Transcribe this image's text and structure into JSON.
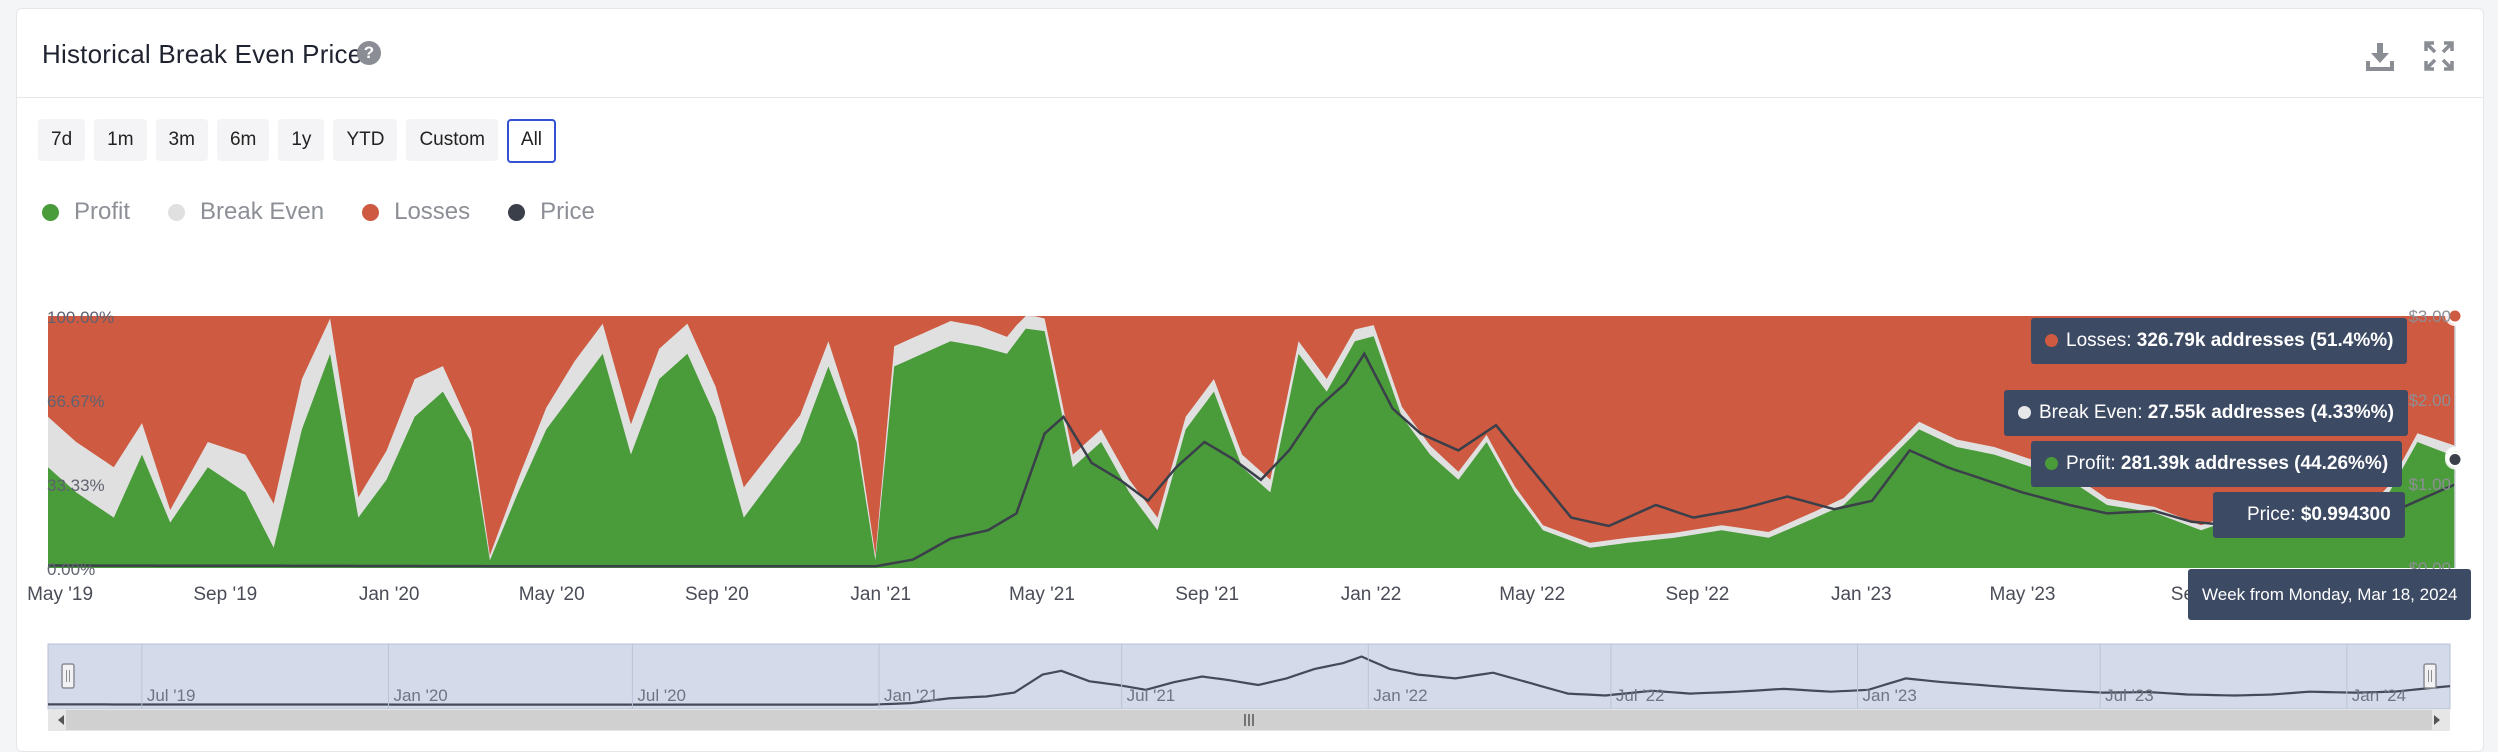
{
  "title": "Historical Break Even Price",
  "periods": [
    "7d",
    "1m",
    "3m",
    "6m",
    "1y",
    "YTD",
    "Custom",
    "All"
  ],
  "active_period": "All",
  "legend": [
    {
      "label": "Profit",
      "color": "#4a9b3a"
    },
    {
      "label": "Break Even",
      "color": "#e0e0e0"
    },
    {
      "label": "Losses",
      "color": "#cd5a41"
    },
    {
      "label": "Price",
      "color": "#3a3f4a"
    }
  ],
  "tooltip": {
    "losses": {
      "label": "Losses",
      "value": "326.79k addresses (51.4%%)"
    },
    "break_even": {
      "label": "Break Even",
      "value": "27.55k addresses (4.33%%)"
    },
    "profit": {
      "label": "Profit",
      "value": "281.39k addresses (44.26%%)"
    },
    "price": {
      "label": "Price",
      "value": "$0.994300"
    },
    "week": "Week from Monday, Mar 18, 2024"
  },
  "navigator_labels": [
    "Jul '19",
    "Jan '20",
    "Jul '20",
    "Jan '21",
    "Jul '21",
    "Jan '22",
    "Jul '22",
    "Jan '23",
    "Jul '23",
    "Jan '24"
  ],
  "chart_data": {
    "type": "area",
    "x_tick_labels": [
      "May '19",
      "Sep '19",
      "Jan '20",
      "May '20",
      "Sep '20",
      "Jan '21",
      "May '21",
      "Sep '21",
      "Jan '22",
      "May '22",
      "Sep '22",
      "Jan '23",
      "May '23",
      "Sep"
    ],
    "left_axis": {
      "ticks": [
        "0.00%",
        "33.33%",
        "66.67%",
        "100.00%"
      ],
      "ylim": [
        0,
        100
      ]
    },
    "right_axis": {
      "ticks": [
        "$0.00",
        "$1.00",
        "$2.00",
        "$3.00"
      ],
      "ylim": [
        0,
        3
      ]
    },
    "x_range": [
      "2019-04-22",
      "2024-03-18"
    ],
    "stacking": "percent",
    "series": [
      {
        "name": "Profit",
        "color": "#4a9b3a",
        "points": [
          [
            "2019-04-22",
            40
          ],
          [
            "2019-05-13",
            30
          ],
          [
            "2019-06-10",
            20
          ],
          [
            "2019-07-01",
            45
          ],
          [
            "2019-07-22",
            18
          ],
          [
            "2019-08-19",
            40
          ],
          [
            "2019-09-16",
            30
          ],
          [
            "2019-10-07",
            8
          ],
          [
            "2019-10-28",
            55
          ],
          [
            "2019-11-18",
            85
          ],
          [
            "2019-12-09",
            20
          ],
          [
            "2019-12-30",
            35
          ],
          [
            "2020-01-20",
            60
          ],
          [
            "2020-02-10",
            70
          ],
          [
            "2020-03-02",
            50
          ],
          [
            "2020-03-16",
            3
          ],
          [
            "2020-04-06",
            30
          ],
          [
            "2020-04-27",
            55
          ],
          [
            "2020-05-18",
            70
          ],
          [
            "2020-06-08",
            85
          ],
          [
            "2020-06-29",
            45
          ],
          [
            "2020-07-20",
            75
          ],
          [
            "2020-08-10",
            85
          ],
          [
            "2020-08-31",
            60
          ],
          [
            "2020-09-21",
            20
          ],
          [
            "2020-10-12",
            35
          ],
          [
            "2020-11-02",
            50
          ],
          [
            "2020-11-23",
            80
          ],
          [
            "2020-12-14",
            50
          ],
          [
            "2020-12-28",
            3
          ],
          [
            "2021-01-11",
            80
          ],
          [
            "2021-02-01",
            85
          ],
          [
            "2021-02-22",
            90
          ],
          [
            "2021-03-15",
            88
          ],
          [
            "2021-04-05",
            85
          ],
          [
            "2021-04-19",
            95
          ],
          [
            "2021-05-03",
            94
          ],
          [
            "2021-05-24",
            40
          ],
          [
            "2021-06-14",
            50
          ],
          [
            "2021-07-05",
            30
          ],
          [
            "2021-07-26",
            15
          ],
          [
            "2021-08-16",
            55
          ],
          [
            "2021-09-06",
            70
          ],
          [
            "2021-09-27",
            40
          ],
          [
            "2021-10-18",
            30
          ],
          [
            "2021-11-08",
            85
          ],
          [
            "2021-11-29",
            70
          ],
          [
            "2021-12-20",
            90
          ],
          [
            "2022-01-03",
            92
          ],
          [
            "2022-01-24",
            60
          ],
          [
            "2022-02-14",
            45
          ],
          [
            "2022-03-07",
            35
          ],
          [
            "2022-03-28",
            50
          ],
          [
            "2022-04-18",
            30
          ],
          [
            "2022-05-09",
            15
          ],
          [
            "2022-06-13",
            8
          ],
          [
            "2022-07-11",
            10
          ],
          [
            "2022-08-15",
            12
          ],
          [
            "2022-09-19",
            15
          ],
          [
            "2022-10-24",
            12
          ],
          [
            "2022-11-28",
            20
          ],
          [
            "2022-12-19",
            25
          ],
          [
            "2023-01-16",
            40
          ],
          [
            "2023-02-13",
            55
          ],
          [
            "2023-03-13",
            48
          ],
          [
            "2023-04-10",
            45
          ],
          [
            "2023-05-08",
            40
          ],
          [
            "2023-06-05",
            35
          ],
          [
            "2023-07-03",
            25
          ],
          [
            "2023-08-07",
            22
          ],
          [
            "2023-09-11",
            15
          ],
          [
            "2023-10-09",
            20
          ],
          [
            "2023-11-06",
            28
          ],
          [
            "2023-12-04",
            25
          ],
          [
            "2024-01-01",
            15
          ],
          [
            "2024-01-29",
            30
          ],
          [
            "2024-02-19",
            50
          ],
          [
            "2024-03-18",
            44.26
          ]
        ]
      },
      {
        "name": "Break Even",
        "color": "#e0e0e0",
        "points": [
          [
            "2019-04-22",
            20
          ],
          [
            "2019-06-10",
            20
          ],
          [
            "2019-07-22",
            5
          ],
          [
            "2019-09-16",
            15
          ],
          [
            "2019-10-28",
            20
          ],
          [
            "2019-12-09",
            8
          ],
          [
            "2020-01-20",
            15
          ],
          [
            "2020-03-16",
            2
          ],
          [
            "2020-05-18",
            12
          ],
          [
            "2020-07-20",
            12
          ],
          [
            "2020-09-21",
            12
          ],
          [
            "2020-11-23",
            10
          ],
          [
            "2020-12-28",
            2
          ],
          [
            "2021-01-11",
            8
          ],
          [
            "2021-03-15",
            8
          ],
          [
            "2021-05-03",
            5
          ],
          [
            "2021-07-26",
            5
          ],
          [
            "2021-09-27",
            5
          ],
          [
            "2021-11-29",
            5
          ],
          [
            "2022-01-24",
            4
          ],
          [
            "2022-05-09",
            2
          ],
          [
            "2022-09-19",
            2
          ],
          [
            "2023-01-16",
            3
          ],
          [
            "2023-05-08",
            3
          ],
          [
            "2023-09-11",
            2
          ],
          [
            "2024-01-01",
            2
          ],
          [
            "2024-03-18",
            4.33
          ]
        ]
      },
      {
        "name": "Losses",
        "color": "#cd5a41",
        "note_fill": "remainder to 100%"
      },
      {
        "name": "Price",
        "color": "#3a3f4a",
        "axis": "right",
        "points": [
          [
            "2019-04-22",
            0.03
          ],
          [
            "2020-06-01",
            0.02
          ],
          [
            "2020-12-28",
            0.02
          ],
          [
            "2021-01-25",
            0.1
          ],
          [
            "2021-02-22",
            0.35
          ],
          [
            "2021-03-22",
            0.45
          ],
          [
            "2021-04-12",
            0.65
          ],
          [
            "2021-05-03",
            1.6
          ],
          [
            "2021-05-17",
            1.8
          ],
          [
            "2021-06-07",
            1.25
          ],
          [
            "2021-06-28",
            1.05
          ],
          [
            "2021-07-19",
            0.8
          ],
          [
            "2021-08-09",
            1.2
          ],
          [
            "2021-08-30",
            1.5
          ],
          [
            "2021-09-20",
            1.3
          ],
          [
            "2021-10-11",
            1.05
          ],
          [
            "2021-11-01",
            1.4
          ],
          [
            "2021-11-22",
            1.9
          ],
          [
            "2021-12-13",
            2.2
          ],
          [
            "2021-12-27",
            2.55
          ],
          [
            "2022-01-17",
            1.9
          ],
          [
            "2022-02-07",
            1.6
          ],
          [
            "2022-03-07",
            1.4
          ],
          [
            "2022-04-04",
            1.7
          ],
          [
            "2022-05-02",
            1.15
          ],
          [
            "2022-05-30",
            0.6
          ],
          [
            "2022-06-27",
            0.5
          ],
          [
            "2022-08-01",
            0.75
          ],
          [
            "2022-08-29",
            0.6
          ],
          [
            "2022-10-03",
            0.7
          ],
          [
            "2022-11-07",
            0.85
          ],
          [
            "2022-12-12",
            0.7
          ],
          [
            "2023-01-09",
            0.8
          ],
          [
            "2023-02-06",
            1.4
          ],
          [
            "2023-03-06",
            1.2
          ],
          [
            "2023-04-03",
            1.05
          ],
          [
            "2023-05-01",
            0.9
          ],
          [
            "2023-06-05",
            0.75
          ],
          [
            "2023-07-03",
            0.65
          ],
          [
            "2023-08-07",
            0.68
          ],
          [
            "2023-09-04",
            0.55
          ],
          [
            "2023-10-09",
            0.5
          ],
          [
            "2023-11-06",
            0.55
          ],
          [
            "2023-12-04",
            0.7
          ],
          [
            "2024-01-08",
            0.65
          ],
          [
            "2024-02-05",
            0.7
          ],
          [
            "2024-02-26",
            0.85
          ],
          [
            "2024-03-18",
            0.9943
          ]
        ]
      }
    ],
    "grid": false,
    "legend_position": "top-left"
  }
}
